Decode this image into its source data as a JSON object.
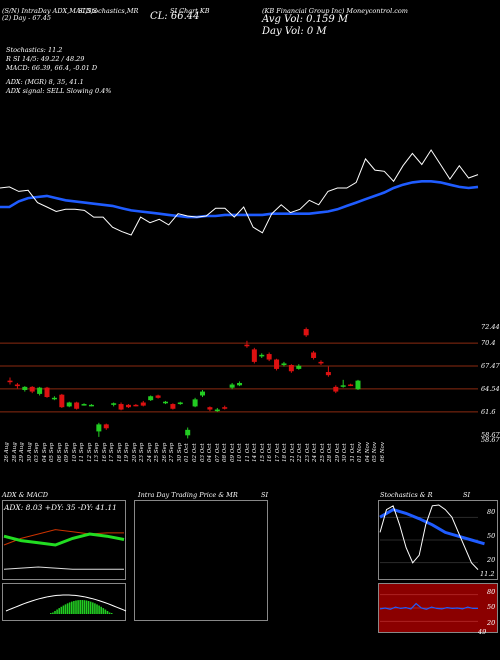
{
  "header": {
    "line1": "(S/N) IntraDay ADX,MACD,S",
    "line1b": "SI,Stochastics,MR",
    "line1c": "SI Chart KB",
    "line2": "(2) Day - 67.45",
    "close_label": "CL: 66.44",
    "company": "(KB Financial Group Inc) Moneycontrol.com",
    "avg_vol": "Avg Vol: 0.159 M",
    "day_vol": "Day Vol: 0   M",
    "stochastics": "Stochastics: 11.2",
    "rsi": "R           SI 14/5: 49.22 / 48.29",
    "macd": "MACD: 66.39, 66.4, -0.01 D",
    "adx": "ADX:                     (MGR) 8, 35, 41.1",
    "adx_signal": "ADX  signal: SELL  Slowing 0.4%"
  },
  "price_levels": [
    "72.44",
    "70.4",
    "67.47",
    "64.54",
    "61.6",
    "58.67",
    "58.67"
  ],
  "dates": [
    "26 Aug",
    "28 Aug",
    "29 Aug",
    "30 Aug",
    "03 Sep",
    "04 Sep",
    "05 Sep",
    "06 Sep",
    "09 Sep",
    "10 Sep",
    "11 Sep",
    "12 Sep",
    "13 Sep",
    "16 Sep",
    "17 Sep",
    "18 Sep",
    "19 Sep",
    "20 Sep",
    "23 Sep",
    "24 Sep",
    "25 Sep",
    "26 Sep",
    "27 Sep",
    "30 Sep",
    "01 Oct",
    "02 Oct",
    "03 Oct",
    "04 Oct",
    "07 Oct",
    "08 Oct",
    "09 Oct",
    "10 Oct",
    "11 Oct",
    "14 Oct",
    "15 Oct",
    "16 Oct",
    "17 Oct",
    "18 Oct",
    "21 Oct",
    "22 Oct",
    "23 Oct",
    "24 Oct",
    "25 Oct",
    "28 Oct",
    "29 Oct",
    "30 Oct",
    "31 Oct",
    "01 Nov",
    "04 Nov",
    "05 Nov",
    "06 Nov"
  ],
  "panels": {
    "adx_title": "ADX  & MACD",
    "adx_values": "ADX: 8.03  +DY: 35  -DY: 41.11",
    "intraday_title": "Intra  Day Trading Price  & MR",
    "intraday_si": "SI",
    "stoch_title": "Stochastics & R",
    "stoch_si": "SI",
    "stoch_ticks": [
      "80",
      "50",
      "20"
    ],
    "stoch_value": "11.2",
    "rsi_ticks": [
      "80",
      "50",
      "20"
    ],
    "rsi_value": "49"
  },
  "colors": {
    "sma": "#1f5cff",
    "price_line": "#ffffff",
    "up": "#22cc22",
    "down": "#dd1111",
    "level_line": "#8b2a10",
    "rsi_bg": "#8b0000",
    "adx_green": "#22dd22"
  },
  "chart_data": {
    "type": "candlestick",
    "price_panel": {
      "ylim": [
        58.0,
        74.0
      ],
      "candles": [
        {
          "o": 65.6,
          "c": 65.4,
          "h": 66.0,
          "l": 65.1
        },
        {
          "o": 65.1,
          "c": 64.9,
          "h": 65.3,
          "l": 64.6
        },
        {
          "o": 64.4,
          "c": 64.8,
          "h": 64.9,
          "l": 64.2
        },
        {
          "o": 64.8,
          "c": 64.2,
          "h": 64.9,
          "l": 64.0
        },
        {
          "o": 63.9,
          "c": 64.7,
          "h": 64.8,
          "l": 63.7
        },
        {
          "o": 64.7,
          "c": 63.5,
          "h": 64.8,
          "l": 63.4
        },
        {
          "o": 63.3,
          "c": 63.4,
          "h": 63.6,
          "l": 63.1
        },
        {
          "o": 63.8,
          "c": 62.2,
          "h": 63.9,
          "l": 62.1
        },
        {
          "o": 62.3,
          "c": 62.8,
          "h": 62.9,
          "l": 62.2
        },
        {
          "o": 62.8,
          "c": 62.0,
          "h": 62.9,
          "l": 61.9
        },
        {
          "o": 62.5,
          "c": 62.6,
          "h": 62.7,
          "l": 62.4
        },
        {
          "o": 62.4,
          "c": 62.5,
          "h": 62.6,
          "l": 62.3
        },
        {
          "o": 59.1,
          "c": 60.0,
          "h": 60.2,
          "l": 58.4
        },
        {
          "o": 60.0,
          "c": 59.5,
          "h": 60.1,
          "l": 59.3
        },
        {
          "o": 62.5,
          "c": 62.7,
          "h": 62.8,
          "l": 62.3
        },
        {
          "o": 62.6,
          "c": 61.9,
          "h": 62.8,
          "l": 61.8
        },
        {
          "o": 62.5,
          "c": 62.2,
          "h": 62.6,
          "l": 62.1
        },
        {
          "o": 62.5,
          "c": 62.4,
          "h": 62.6,
          "l": 62.3
        },
        {
          "o": 62.8,
          "c": 62.4,
          "h": 63.0,
          "l": 62.3
        },
        {
          "o": 63.1,
          "c": 63.6,
          "h": 63.7,
          "l": 63.0
        },
        {
          "o": 63.7,
          "c": 63.4,
          "h": 63.8,
          "l": 63.3
        },
        {
          "o": 62.7,
          "c": 62.9,
          "h": 63.0,
          "l": 62.6
        },
        {
          "o": 62.6,
          "c": 62.0,
          "h": 62.7,
          "l": 61.9
        },
        {
          "o": 62.6,
          "c": 62.8,
          "h": 62.9,
          "l": 62.5
        },
        {
          "o": 58.6,
          "c": 59.3,
          "h": 59.6,
          "l": 58.2
        },
        {
          "o": 62.3,
          "c": 63.2,
          "h": 63.4,
          "l": 62.2
        },
        {
          "o": 63.7,
          "c": 64.2,
          "h": 64.4,
          "l": 63.5
        },
        {
          "o": 62.2,
          "c": 61.9,
          "h": 62.3,
          "l": 61.7
        },
        {
          "o": 61.7,
          "c": 61.9,
          "h": 62.1,
          "l": 61.6
        },
        {
          "o": 62.2,
          "c": 62.0,
          "h": 62.4,
          "l": 61.9
        },
        {
          "o": 64.7,
          "c": 65.1,
          "h": 65.3,
          "l": 64.5
        },
        {
          "o": 65.0,
          "c": 65.3,
          "h": 65.5,
          "l": 64.9
        },
        {
          "o": 70.2,
          "c": 70.0,
          "h": 70.7,
          "l": 69.8
        },
        {
          "o": 69.6,
          "c": 68.0,
          "h": 69.8,
          "l": 67.8
        },
        {
          "o": 68.7,
          "c": 68.9,
          "h": 69.1,
          "l": 68.5
        },
        {
          "o": 69.0,
          "c": 68.3,
          "h": 69.2,
          "l": 68.1
        },
        {
          "o": 68.3,
          "c": 67.1,
          "h": 68.4,
          "l": 66.9
        },
        {
          "o": 67.6,
          "c": 67.8,
          "h": 68.0,
          "l": 67.4
        },
        {
          "o": 67.6,
          "c": 66.8,
          "h": 67.7,
          "l": 66.6
        },
        {
          "o": 67.1,
          "c": 67.5,
          "h": 67.7,
          "l": 67.0
        },
        {
          "o": 72.2,
          "c": 71.4,
          "h": 72.4,
          "l": 71.2
        },
        {
          "o": 69.2,
          "c": 68.5,
          "h": 69.4,
          "l": 68.3
        },
        {
          "o": 68.0,
          "c": 67.8,
          "h": 68.2,
          "l": 67.6
        },
        {
          "o": 66.7,
          "c": 66.3,
          "h": 67.4,
          "l": 66.1
        },
        {
          "o": 64.8,
          "c": 64.2,
          "h": 65.0,
          "l": 64.0
        },
        {
          "o": 64.9,
          "c": 65.0,
          "h": 65.7,
          "l": 64.7
        },
        {
          "o": 65.1,
          "c": 65.0,
          "h": 65.2,
          "l": 64.9
        },
        {
          "o": 64.5,
          "c": 65.6,
          "h": 65.7,
          "l": 64.4
        }
      ]
    },
    "mrsi_panel": {
      "price_line": [
        64.5,
        64.6,
        64.2,
        64.3,
        63.2,
        62.8,
        62.4,
        62.6,
        62.6,
        62.5,
        61.9,
        61.9,
        61.0,
        60.6,
        60.3,
        61.9,
        61.4,
        61.7,
        61.2,
        62.2,
        62.0,
        61.9,
        62.0,
        62.7,
        62.7,
        61.9,
        62.8,
        61.0,
        60.5,
        62.2,
        63.0,
        62.3,
        62.6,
        63.4,
        63.0,
        64.2,
        64.5,
        64.5,
        65.0,
        67.1,
        66.1,
        66.0,
        65.1,
        66.5,
        67.6,
        66.6,
        67.9,
        66.6,
        65.3,
        66.5,
        65.4,
        65.7
      ],
      "sma_line": [
        62.8,
        62.8,
        63.3,
        63.6,
        63.7,
        63.8,
        63.6,
        63.4,
        63.3,
        63.2,
        63.1,
        63.0,
        62.9,
        62.7,
        62.5,
        62.4,
        62.3,
        62.2,
        62.1,
        62.0,
        61.9,
        61.9,
        62.0,
        62.0,
        62.1,
        62.1,
        62.1,
        62.1,
        62.1,
        62.2,
        62.2,
        62.2,
        62.2,
        62.2,
        62.3,
        62.4,
        62.6,
        62.9,
        63.2,
        63.5,
        63.8,
        64.1,
        64.5,
        64.8,
        65.0,
        65.1,
        65.1,
        65.0,
        64.8,
        64.6,
        64.5,
        64.6
      ]
    },
    "adx_panel": {
      "adx": [
        8,
        9,
        10,
        9,
        8,
        8,
        8,
        8
      ],
      "plus_di": [
        38,
        34,
        32,
        30,
        36,
        40,
        38,
        35
      ],
      "minus_di": [
        30,
        36,
        40,
        44,
        42,
        40,
        41,
        41
      ]
    },
    "stoch_panel": {
      "ylim": [
        0,
        100
      ],
      "stoch": [
        60,
        90,
        95,
        70,
        40,
        20,
        30,
        70,
        95,
        96,
        90,
        80,
        60,
        40,
        20,
        11
      ],
      "rsi_blue": [
        80,
        90,
        85,
        78,
        70,
        60,
        55,
        50,
        45
      ]
    },
    "rsi_panel": {
      "ylim": [
        0,
        100
      ],
      "rsi": [
        48,
        50,
        47,
        52,
        49,
        51,
        48,
        60,
        50,
        47,
        52,
        49,
        48,
        51,
        49,
        50,
        48,
        52,
        49,
        49
      ]
    }
  }
}
